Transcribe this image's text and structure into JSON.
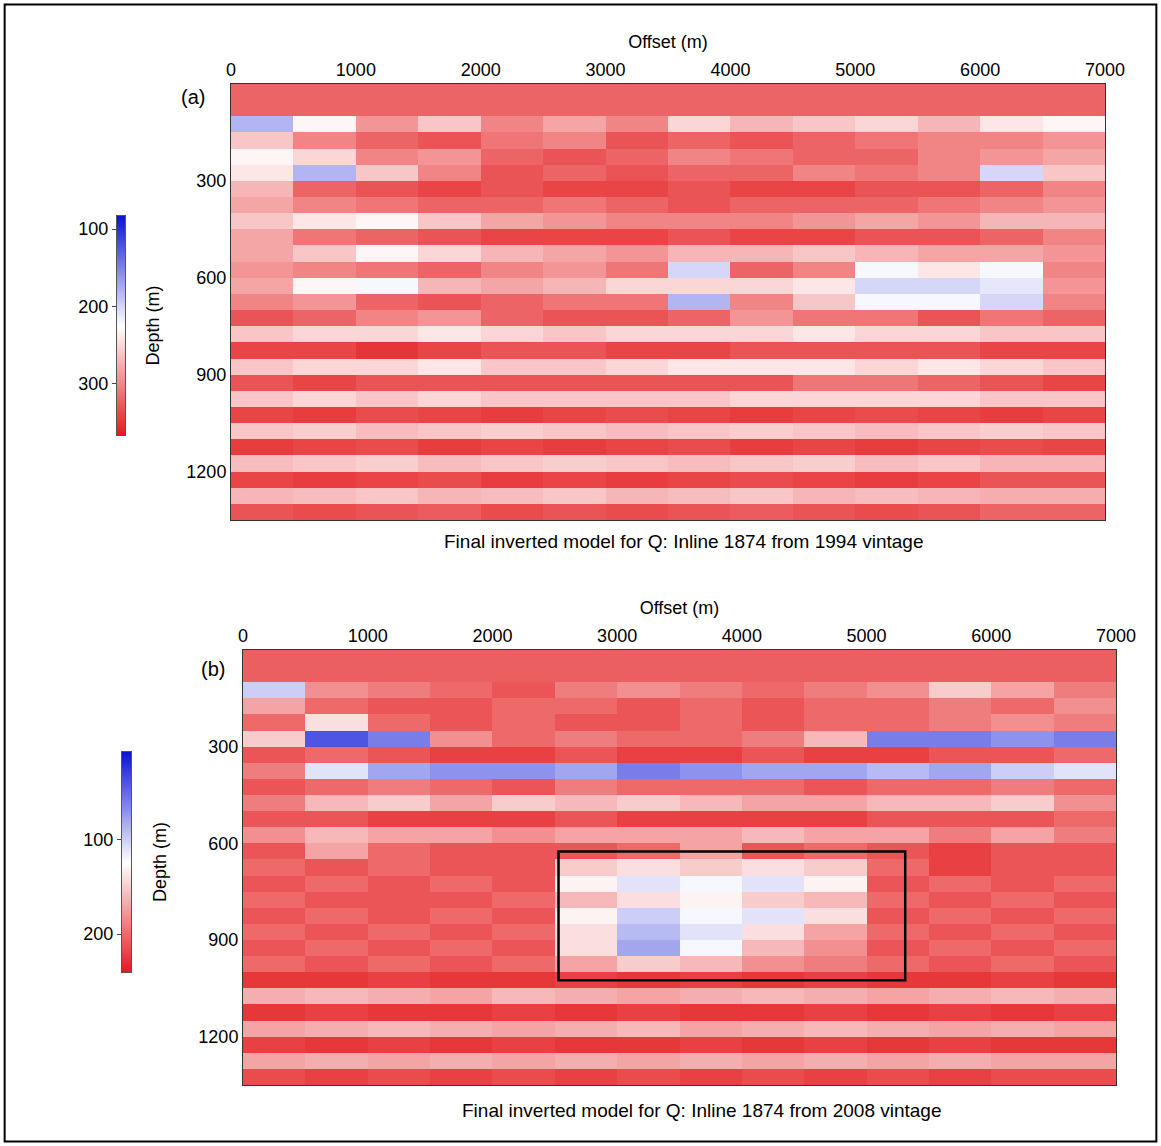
{
  "chart_data": [
    {
      "type": "heatmap",
      "panel": "(a)",
      "title": "Final inverted model for Q: Inline 1874 from 1994 vintage",
      "x_label": "Offset (m)",
      "xlim": [
        0,
        7000
      ],
      "xticks": [
        0,
        1000,
        2000,
        3000,
        4000,
        5000,
        6000,
        7000
      ],
      "ylim": [
        0,
        1350
      ],
      "yticks": [
        300,
        600,
        900,
        1200
      ],
      "colorbar": {
        "title": "Depth (m)",
        "range": [
          83,
          366
        ],
        "ticks": [
          100,
          200,
          300
        ]
      },
      "x": [
        250,
        750,
        1250,
        1750,
        2250,
        2750,
        3250,
        3750,
        4250,
        4750,
        5250,
        5750,
        6250,
        6750
      ],
      "y": [
        25,
        75,
        125,
        175,
        225,
        275,
        325,
        375,
        425,
        475,
        525,
        575,
        625,
        675,
        725,
        775,
        825,
        875,
        925,
        975,
        1025,
        1075,
        1125,
        1175,
        1225,
        1275,
        1325
      ],
      "cells": [
        [
          320,
          320,
          320,
          320,
          320,
          320,
          320,
          320,
          320,
          320,
          320,
          320,
          320,
          320
        ],
        [
          320,
          320,
          320,
          320,
          320,
          320,
          320,
          320,
          320,
          320,
          320,
          320,
          320,
          320
        ],
        [
          180,
          230,
          290,
          260,
          300,
          280,
          300,
          250,
          270,
          260,
          250,
          270,
          240,
          230
        ],
        [
          260,
          300,
          320,
          330,
          310,
          300,
          330,
          320,
          330,
          320,
          310,
          300,
          300,
          290
        ],
        [
          230,
          250,
          300,
          290,
          320,
          330,
          320,
          300,
          310,
          320,
          320,
          300,
          290,
          280
        ],
        [
          240,
          180,
          260,
          300,
          330,
          320,
          330,
          320,
          320,
          300,
          310,
          300,
          200,
          260
        ],
        [
          270,
          320,
          330,
          340,
          330,
          340,
          340,
          330,
          340,
          340,
          330,
          330,
          320,
          300
        ],
        [
          280,
          300,
          310,
          320,
          320,
          310,
          320,
          330,
          320,
          320,
          320,
          310,
          300,
          290
        ],
        [
          260,
          240,
          230,
          260,
          280,
          290,
          300,
          300,
          300,
          290,
          280,
          290,
          270,
          270
        ],
        [
          280,
          310,
          320,
          330,
          340,
          340,
          340,
          330,
          340,
          340,
          330,
          330,
          320,
          300
        ],
        [
          280,
          260,
          230,
          250,
          270,
          280,
          290,
          270,
          270,
          260,
          270,
          280,
          280,
          290
        ],
        [
          290,
          300,
          310,
          320,
          300,
          290,
          310,
          200,
          320,
          300,
          220,
          240,
          220,
          300
        ],
        [
          280,
          230,
          220,
          270,
          280,
          270,
          250,
          250,
          250,
          240,
          200,
          200,
          210,
          290
        ],
        [
          300,
          290,
          320,
          330,
          320,
          310,
          310,
          180,
          300,
          260,
          220,
          220,
          200,
          300
        ],
        [
          330,
          320,
          300,
          290,
          320,
          330,
          330,
          320,
          290,
          310,
          310,
          330,
          310,
          320
        ],
        [
          260,
          250,
          250,
          240,
          250,
          260,
          250,
          250,
          250,
          240,
          250,
          250,
          260,
          260
        ],
        [
          340,
          340,
          350,
          340,
          330,
          330,
          340,
          340,
          330,
          330,
          330,
          330,
          340,
          340
        ],
        [
          260,
          250,
          250,
          240,
          260,
          260,
          250,
          240,
          240,
          240,
          250,
          240,
          250,
          260
        ],
        [
          330,
          340,
          330,
          330,
          330,
          330,
          330,
          330,
          330,
          310,
          310,
          320,
          330,
          340
        ],
        [
          260,
          250,
          260,
          250,
          260,
          260,
          260,
          260,
          250,
          250,
          250,
          250,
          260,
          260
        ],
        [
          340,
          345,
          335,
          340,
          345,
          340,
          335,
          340,
          345,
          340,
          335,
          340,
          345,
          340
        ],
        [
          260,
          255,
          265,
          260,
          255,
          260,
          265,
          260,
          255,
          260,
          265,
          260,
          255,
          260
        ],
        [
          345,
          340,
          335,
          345,
          340,
          345,
          340,
          335,
          345,
          340,
          345,
          340,
          335,
          340
        ],
        [
          265,
          260,
          255,
          265,
          260,
          255,
          260,
          265,
          260,
          255,
          265,
          260,
          270,
          270
        ],
        [
          340,
          345,
          340,
          335,
          345,
          340,
          345,
          340,
          335,
          340,
          345,
          340,
          330,
          330
        ],
        [
          270,
          265,
          260,
          270,
          265,
          260,
          270,
          265,
          260,
          270,
          265,
          270,
          275,
          275
        ],
        [
          330,
          335,
          330,
          325,
          335,
          330,
          335,
          330,
          325,
          330,
          335,
          330,
          320,
          320
        ]
      ]
    },
    {
      "type": "heatmap",
      "panel": "(b)",
      "title": "Final inverted model for Q: Inline 1874 from 2008 vintage",
      "x_label": "Offset (m)",
      "xlim": [
        0,
        7000
      ],
      "xticks": [
        0,
        1000,
        2000,
        3000,
        4000,
        5000,
        6000,
        7000
      ],
      "ylim": [
        0,
        1350
      ],
      "yticks": [
        300,
        600,
        900,
        1200
      ],
      "colorbar": {
        "title": "Depth (m)",
        "range": [
          8,
          240
        ],
        "ticks": [
          100,
          200
        ]
      },
      "box": {
        "x": [
          2530,
          5310
        ],
        "y": [
          625,
          1025
        ]
      },
      "x": [
        250,
        750,
        1250,
        1750,
        2250,
        2750,
        3250,
        3750,
        4250,
        4750,
        5250,
        5750,
        6250,
        6750
      ],
      "y": [
        25,
        75,
        125,
        175,
        225,
        275,
        325,
        375,
        425,
        475,
        525,
        575,
        625,
        675,
        725,
        775,
        825,
        875,
        925,
        975,
        1025,
        1075,
        1125,
        1175,
        1225,
        1275,
        1325
      ],
      "cells": [
        [
          205,
          205,
          205,
          205,
          205,
          205,
          205,
          205,
          205,
          205,
          205,
          205,
          205,
          205
        ],
        [
          205,
          205,
          205,
          205,
          205,
          205,
          205,
          205,
          205,
          205,
          205,
          205,
          205,
          205
        ],
        [
          100,
          180,
          190,
          200,
          210,
          190,
          180,
          190,
          200,
          190,
          180,
          150,
          170,
          190
        ],
        [
          170,
          200,
          210,
          210,
          200,
          200,
          210,
          200,
          210,
          200,
          200,
          190,
          200,
          180
        ],
        [
          200,
          140,
          200,
          210,
          200,
          210,
          210,
          200,
          210,
          200,
          200,
          190,
          180,
          190
        ],
        [
          150,
          40,
          60,
          180,
          200,
          190,
          200,
          200,
          190,
          160,
          60,
          60,
          70,
          60
        ],
        [
          210,
          200,
          210,
          220,
          220,
          210,
          220,
          220,
          210,
          220,
          220,
          210,
          210,
          200
        ],
        [
          190,
          110,
          80,
          70,
          70,
          80,
          60,
          70,
          80,
          80,
          90,
          80,
          100,
          110
        ],
        [
          210,
          200,
          190,
          200,
          210,
          190,
          200,
          200,
          200,
          210,
          200,
          200,
          190,
          200
        ],
        [
          190,
          160,
          150,
          170,
          150,
          160,
          150,
          160,
          170,
          170,
          160,
          160,
          150,
          180
        ],
        [
          210,
          210,
          220,
          220,
          220,
          210,
          220,
          220,
          220,
          220,
          210,
          210,
          210,
          200
        ],
        [
          180,
          160,
          170,
          170,
          180,
          170,
          170,
          170,
          160,
          170,
          170,
          190,
          170,
          190
        ],
        [
          210,
          170,
          200,
          210,
          210,
          210,
          200,
          170,
          210,
          200,
          210,
          220,
          210,
          210
        ],
        [
          200,
          210,
          200,
          210,
          210,
          150,
          140,
          150,
          140,
          150,
          200,
          220,
          210,
          210
        ],
        [
          210,
          200,
          210,
          200,
          210,
          130,
          110,
          120,
          110,
          130,
          210,
          200,
          210,
          200
        ],
        [
          200,
          210,
          210,
          210,
          200,
          160,
          140,
          130,
          150,
          160,
          200,
          210,
          200,
          210
        ],
        [
          210,
          200,
          210,
          200,
          210,
          130,
          100,
          120,
          110,
          140,
          210,
          200,
          210,
          200
        ],
        [
          200,
          210,
          200,
          210,
          200,
          140,
          90,
          110,
          140,
          170,
          200,
          210,
          200,
          210
        ],
        [
          210,
          200,
          210,
          200,
          210,
          140,
          80,
          120,
          160,
          180,
          210,
          200,
          210,
          200
        ],
        [
          200,
          210,
          200,
          210,
          200,
          170,
          150,
          160,
          180,
          190,
          200,
          210,
          200,
          210
        ],
        [
          225,
          225,
          220,
          225,
          225,
          220,
          225,
          220,
          225,
          220,
          225,
          225,
          220,
          225
        ],
        [
          165,
          160,
          165,
          170,
          160,
          165,
          170,
          165,
          160,
          165,
          170,
          165,
          160,
          165
        ],
        [
          225,
          220,
          225,
          225,
          220,
          225,
          220,
          225,
          225,
          220,
          225,
          220,
          225,
          220
        ],
        [
          170,
          165,
          160,
          165,
          170,
          165,
          160,
          170,
          165,
          160,
          165,
          170,
          165,
          170
        ],
        [
          220,
          225,
          220,
          225,
          220,
          225,
          225,
          220,
          225,
          220,
          225,
          220,
          225,
          225
        ],
        [
          170,
          165,
          170,
          165,
          170,
          165,
          170,
          165,
          170,
          165,
          170,
          165,
          170,
          170
        ],
        [
          215,
          220,
          215,
          220,
          215,
          220,
          215,
          220,
          215,
          220,
          215,
          220,
          215,
          215
        ]
      ]
    }
  ]
}
